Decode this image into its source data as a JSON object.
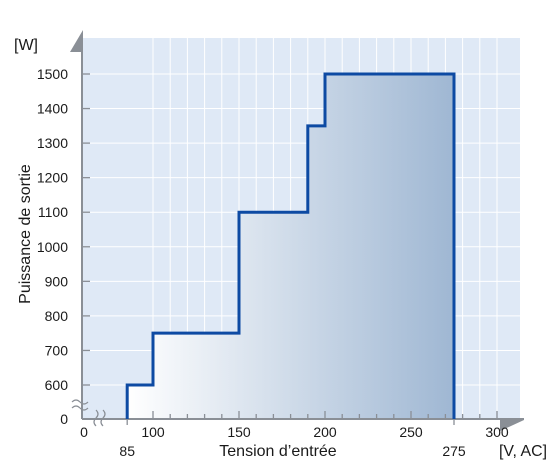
{
  "chart_data": {
    "type": "area",
    "title": "",
    "xlabel": "Tension d’entrée",
    "ylabel": "Puissance de sortie",
    "x_unit": "[V, AC]",
    "y_unit": "[W]",
    "xlim": [
      0,
      300
    ],
    "ylim": [
      0,
      1500
    ],
    "y_axis_break": "between 0 and 600",
    "x_axis_break": "between 0 and 100",
    "grid": true,
    "step": "post",
    "x_ticks": [
      {
        "value": 0,
        "label": "0"
      },
      {
        "value": 100,
        "label": "100"
      },
      {
        "value": 150,
        "label": "150"
      },
      {
        "value": 200,
        "label": "200"
      },
      {
        "value": 250,
        "label": "250"
      },
      {
        "value": 300,
        "label": "300"
      }
    ],
    "x_marks": [
      {
        "value": 85,
        "label": "85"
      },
      {
        "value": 275,
        "label": "275"
      }
    ],
    "y_ticks": [
      {
        "value": 0,
        "label": "0"
      },
      {
        "value": 600,
        "label": "600"
      },
      {
        "value": 700,
        "label": "700"
      },
      {
        "value": 800,
        "label": "800"
      },
      {
        "value": 900,
        "label": "900"
      },
      {
        "value": 1000,
        "label": "1000"
      },
      {
        "value": 1100,
        "label": "1100"
      },
      {
        "value": 1200,
        "label": "1200"
      },
      {
        "value": 1300,
        "label": "1300"
      },
      {
        "value": 1400,
        "label": "1400"
      },
      {
        "value": 1500,
        "label": "1500"
      }
    ],
    "series": [
      {
        "x": [
          85,
          100,
          150,
          190,
          200,
          275
        ],
        "y": [
          600,
          750,
          1100,
          1350,
          1500,
          1500
        ]
      }
    ]
  },
  "colors": {
    "background": "#ffffff",
    "panel": "#dfe9f6",
    "grid": "#ffffff",
    "axis": "#8a8f96",
    "line": "#0d4aa3",
    "fill_start": "#ffffff",
    "fill_end": "#9fb7d3",
    "text": "#1a1a1a"
  }
}
